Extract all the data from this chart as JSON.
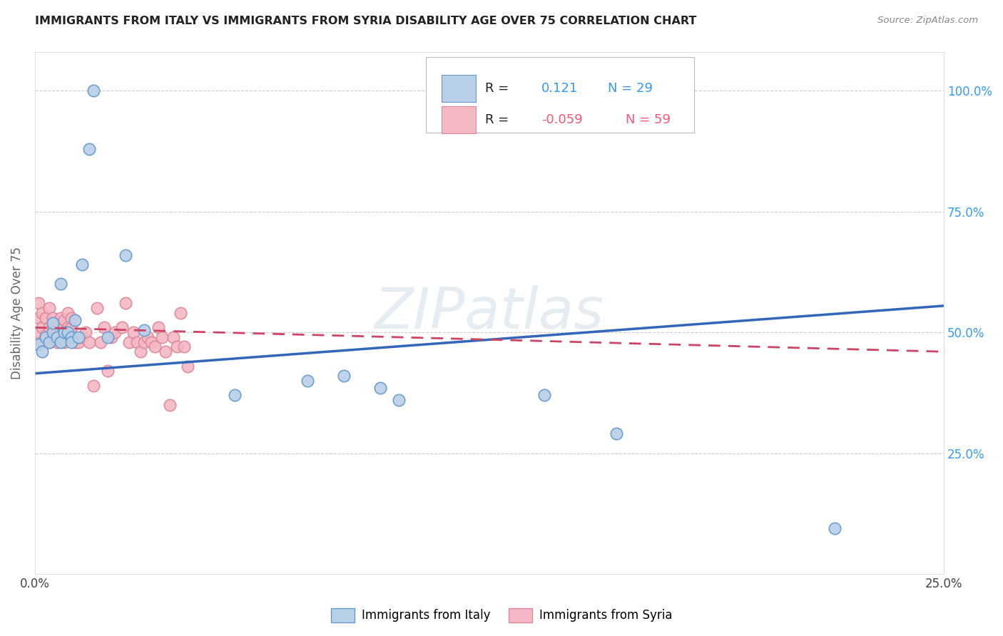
{
  "title": "IMMIGRANTS FROM ITALY VS IMMIGRANTS FROM SYRIA DISABILITY AGE OVER 75 CORRELATION CHART",
  "source": "Source: ZipAtlas.com",
  "ylabel": "Disability Age Over 75",
  "legend_italy": "Immigrants from Italy",
  "legend_syria": "Immigrants from Syria",
  "r_italy": "0.121",
  "n_italy": "29",
  "r_syria": "-0.059",
  "n_syria": "59",
  "color_italy_fill": "#b8d0e8",
  "color_italy_edge": "#6699cc",
  "color_syria_fill": "#f4b8c4",
  "color_syria_edge": "#dd8899",
  "color_italy_line": "#3366bb",
  "color_syria_line": "#cc4466",
  "italy_scatter_x": [
    0.001,
    0.002,
    0.003,
    0.004,
    0.005,
    0.005,
    0.006,
    0.007,
    0.007,
    0.008,
    0.009,
    0.01,
    0.01,
    0.011,
    0.012,
    0.013,
    0.015,
    0.016,
    0.02,
    0.025,
    0.03,
    0.055,
    0.075,
    0.085,
    0.095,
    0.1,
    0.14,
    0.16,
    0.22
  ],
  "italy_scatter_y": [
    0.475,
    0.46,
    0.49,
    0.48,
    0.5,
    0.52,
    0.49,
    0.6,
    0.48,
    0.5,
    0.5,
    0.49,
    0.48,
    0.525,
    0.49,
    0.64,
    0.88,
    1.0,
    0.49,
    0.66,
    0.505,
    0.37,
    0.4,
    0.41,
    0.385,
    0.36,
    0.37,
    0.29,
    0.095
  ],
  "syria_scatter_x": [
    0.001,
    0.001,
    0.001,
    0.002,
    0.002,
    0.002,
    0.003,
    0.003,
    0.004,
    0.004,
    0.004,
    0.005,
    0.005,
    0.005,
    0.006,
    0.006,
    0.006,
    0.007,
    0.007,
    0.007,
    0.008,
    0.008,
    0.008,
    0.009,
    0.009,
    0.01,
    0.01,
    0.01,
    0.011,
    0.012,
    0.013,
    0.014,
    0.015,
    0.016,
    0.017,
    0.018,
    0.019,
    0.02,
    0.021,
    0.022,
    0.024,
    0.025,
    0.026,
    0.027,
    0.028,
    0.029,
    0.03,
    0.031,
    0.032,
    0.033,
    0.034,
    0.035,
    0.036,
    0.037,
    0.038,
    0.039,
    0.04,
    0.041,
    0.042
  ],
  "syria_scatter_y": [
    0.5,
    0.53,
    0.56,
    0.48,
    0.51,
    0.54,
    0.495,
    0.53,
    0.48,
    0.51,
    0.55,
    0.49,
    0.51,
    0.53,
    0.48,
    0.5,
    0.52,
    0.49,
    0.51,
    0.53,
    0.48,
    0.5,
    0.525,
    0.51,
    0.54,
    0.49,
    0.51,
    0.53,
    0.48,
    0.48,
    0.49,
    0.5,
    0.48,
    0.39,
    0.55,
    0.48,
    0.51,
    0.42,
    0.49,
    0.5,
    0.51,
    0.56,
    0.48,
    0.5,
    0.48,
    0.46,
    0.48,
    0.49,
    0.48,
    0.47,
    0.51,
    0.49,
    0.46,
    0.35,
    0.49,
    0.47,
    0.54,
    0.47,
    0.43
  ],
  "xlim": [
    0.0,
    0.25
  ],
  "ylim": [
    0.0,
    1.08
  ],
  "italy_line_x": [
    0.0,
    0.25
  ],
  "italy_line_y": [
    0.415,
    0.555
  ],
  "syria_line_x": [
    0.0,
    0.25
  ],
  "syria_line_y": [
    0.51,
    0.46
  ],
  "background_color": "#ffffff",
  "watermark": "ZIPatlas",
  "grid_color": "#cccccc",
  "right_tick_color": "#3399ff",
  "ytick_vals": [
    0.25,
    0.5,
    0.75,
    1.0
  ],
  "ytick_labels": [
    "25.0%",
    "50.0%",
    "75.0%",
    "100.0%"
  ]
}
